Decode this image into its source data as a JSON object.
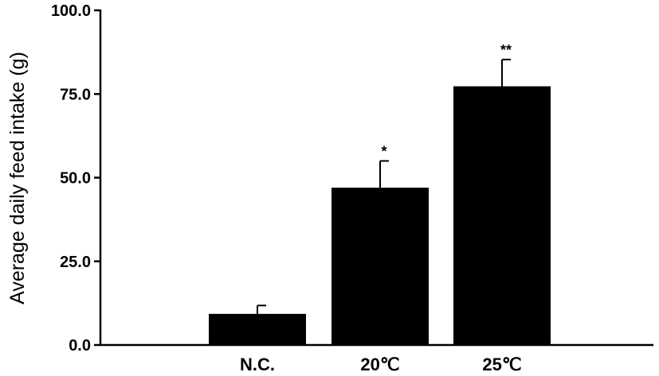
{
  "chart_data": {
    "type": "bar",
    "title": "",
    "xlabel": "",
    "ylabel": "Average daily feed intake (g)",
    "categories": [
      "N.C.",
      "20℃",
      "25℃"
    ],
    "values": [
      9.3,
      47.0,
      77.3
    ],
    "error": [
      2.5,
      8.0,
      8.0
    ],
    "annotations": [
      "",
      "*",
      "**"
    ],
    "ylim": [
      0,
      100
    ],
    "yticks": [
      0,
      25,
      50,
      75,
      100
    ],
    "ytick_labels": [
      "0.0",
      "25.0",
      "50.0",
      "75.0",
      "100.0"
    ],
    "bar_color": "#000000",
    "grid": false,
    "legend": "none"
  }
}
